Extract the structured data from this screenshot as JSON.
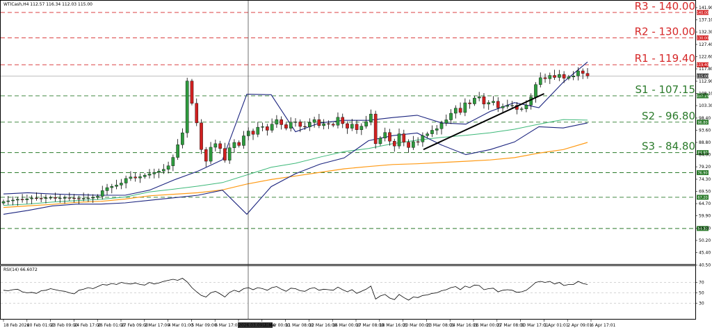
{
  "header": {
    "symbol_info": "WTICash,H4  112.57 116.34 112.03 115.00",
    "rsi_info": "RSI(14) 66.6072"
  },
  "levels": [
    {
      "name": "R3",
      "label": "R3 - 140.00",
      "value": 140.0,
      "tag": "140.00",
      "color": "#d62728"
    },
    {
      "name": "R2",
      "label": "R2 - 130.00",
      "value": 130.0,
      "tag": "130.00",
      "color": "#d62728"
    },
    {
      "name": "R1",
      "label": "R1 - 119.40",
      "value": 119.4,
      "tag": "119.40",
      "color": "#d62728"
    },
    {
      "name": "S1",
      "label": "S1 - 107.15",
      "value": 107.15,
      "tag": "107.15",
      "color": "#2a7a2a"
    },
    {
      "name": "S2",
      "label": "S2 - 96.80",
      "value": 96.8,
      "tag": "96.80",
      "color": "#2a7a2a"
    },
    {
      "name": "S3",
      "label": "S3 - 84.80",
      "value": 84.8,
      "tag": "84.80",
      "color": "#2a7a2a"
    },
    {
      "name": "L5",
      "label": "",
      "value": 76.9,
      "tag": "76.90",
      "color": "#2a7a2a"
    },
    {
      "name": "L6",
      "label": "",
      "value": 67.2,
      "tag": "67.20",
      "color": "#2a7a2a"
    },
    {
      "name": "L7",
      "label": "",
      "value": 54.9,
      "tag": "54.90",
      "color": "#2a7a2a"
    }
  ],
  "current_price": {
    "value": 115.0,
    "tag": "115.00"
  },
  "chart_data": {
    "type": "candlestick",
    "y_ticks": [
      "141.90",
      "137.10",
      "132.30",
      "127.40",
      "122.60",
      "117.80",
      "112.90",
      "108.10",
      "103.30",
      "98.40",
      "93.60",
      "88.80",
      "84.00",
      "79.20",
      "74.30",
      "69.50",
      "64.70",
      "59.90",
      "55.00",
      "50.20",
      "45.40",
      "40.50"
    ],
    "ylim": [
      40.5,
      141.9
    ],
    "x_ticks": [
      "18 Feb 2026",
      "20 Feb 01:00",
      "23 Feb 09:00",
      "24 Feb 17:00",
      "26 Feb 01:00",
      "27 Feb 09:00",
      "2 Mar 17:00",
      "4 Mar 01:00",
      "5 Mar 09:00",
      "6 Mar 17:00",
      "2026.03.09 21:00",
      "11 Mar 00:00",
      "11 Mar 08:00",
      "12 Mar 16:00",
      "16 Mar 00:00",
      "17 Mar 08:00",
      "18 Mar 16:01",
      "20 Mar 00:01",
      "23 Mar 08:01",
      "24 Mar 16:01",
      "26 Mar 00:01",
      "27 Mar 08:01",
      "30 Mar 17:01",
      "1 Apr 01:01",
      "2 Apr 09:01",
      "6 Apr 17:01"
    ],
    "highlight_x_tick": "2026.03.09 21:00",
    "close": [
      65.5,
      65.8,
      66.1,
      66.4,
      66.2,
      66.6,
      66.9,
      66.8,
      66.7,
      67.0,
      67.1,
      66.8,
      66.9,
      67.0,
      66.9,
      66.7,
      66.6,
      66.8,
      66.9,
      67.1,
      67.6,
      69.8,
      71.0,
      71.5,
      72.0,
      72.8,
      74.6,
      75.2,
      74.8,
      75.3,
      75.9,
      76.4,
      77.0,
      77.5,
      78.2,
      79.6,
      82.9,
      87.9,
      92.6,
      113.0,
      104.2,
      96.5,
      86.0,
      81.4,
      86.9,
      88.3,
      86.4,
      81.8,
      86.7,
      88.8,
      87.6,
      91.4,
      93.3,
      92.0,
      94.8,
      95.0,
      93.6,
      96.0,
      97.8,
      95.8,
      94.4,
      96.8,
      96.9,
      95.1,
      94.9,
      96.7,
      97.8,
      95.4,
      96.2,
      96.0,
      95.6,
      98.7,
      96.2,
      94.4,
      96.0,
      93.8,
      95.2,
      97.0,
      100.0,
      88.3,
      90.5,
      92.7,
      89.3,
      87.4,
      92.2,
      88.9,
      86.8,
      89.1,
      89.0,
      91.5,
      92.2,
      93.6,
      94.2,
      96.4,
      97.7,
      100.3,
      102.3,
      100.6,
      104.4,
      104.0,
      106.3,
      106.8,
      103.9,
      104.5,
      105.0,
      102.4,
      103.0,
      103.4,
      103.4,
      101.8,
      102.0,
      103.5,
      106.7,
      111.6,
      114.3,
      113.9,
      115.2,
      114.4,
      115.6,
      114.1,
      114.6,
      115.0,
      117.0,
      116.0,
      115.0
    ],
    "ma_green": [
      64.0,
      64.5,
      65.3,
      65.9,
      66.4,
      67.3,
      69.3,
      70.4,
      71.6,
      73.0,
      76.0,
      79.0,
      80.6,
      83.0,
      85.2,
      86.4,
      88.3,
      89.7,
      90.8,
      91.6,
      92.6,
      94.0,
      96.0,
      97.8,
      97.6
    ],
    "ma_orange": [
      63.2,
      63.8,
      64.4,
      65.2,
      65.6,
      66.5,
      67.8,
      68.4,
      69.0,
      70.1,
      72.4,
      74.2,
      75.6,
      77.0,
      78.4,
      79.3,
      80.1,
      80.4,
      80.9,
      81.4,
      81.9,
      82.8,
      84.6,
      86.0,
      88.8
    ],
    "bb_upper": [
      68.5,
      69.0,
      68.5,
      68.2,
      68.0,
      68.0,
      70.0,
      74.0,
      77.5,
      82.0,
      107.8,
      107.6,
      93.0,
      96.5,
      97.5,
      97.5,
      98.6,
      99.5,
      96.5,
      96.0,
      101.0,
      104.5,
      102.5,
      112.5,
      120.5
    ],
    "bb_lower": [
      60.5,
      62.0,
      63.8,
      64.5,
      64.5,
      65.0,
      66.0,
      67.0,
      68.0,
      70.0,
      60.5,
      71.4,
      76.5,
      80.2,
      82.7,
      89.5,
      91.5,
      92.5,
      87.8,
      84.0,
      86.0,
      89.0,
      95.0,
      94.5,
      96.5
    ],
    "trendline": [
      [
        87.0,
        86.0
      ],
      [
        112.0,
        108.0
      ]
    ],
    "rsi_ticks": [
      "70",
      "50",
      "30"
    ],
    "rsi_ylim": [
      0,
      100
    ],
    "rsi": [
      55,
      54,
      56,
      57,
      52,
      50,
      51,
      49,
      54,
      55,
      58,
      56,
      54,
      53,
      50,
      48,
      55,
      57,
      60,
      58,
      62,
      66,
      65,
      68,
      66,
      70,
      68,
      67,
      69,
      66,
      65,
      70,
      67,
      69,
      72,
      74,
      76,
      74,
      78,
      71,
      60,
      52,
      45,
      42,
      50,
      53,
      48,
      42,
      51,
      55,
      52,
      58,
      60,
      56,
      60,
      58,
      55,
      60,
      62,
      57,
      53,
      59,
      58,
      54,
      53,
      58,
      60,
      55,
      57,
      56,
      55,
      61,
      56,
      52,
      56,
      49,
      53,
      57,
      63,
      38,
      44,
      47,
      40,
      37,
      47,
      41,
      36,
      42,
      41,
      45,
      46,
      49,
      50,
      54,
      56,
      60,
      62,
      56,
      63,
      60,
      65,
      64,
      56,
      58,
      59,
      52,
      55,
      56,
      55,
      51,
      52,
      55,
      62,
      70,
      72,
      70,
      72,
      67,
      70,
      64,
      66,
      66,
      72,
      68,
      66
    ]
  }
}
